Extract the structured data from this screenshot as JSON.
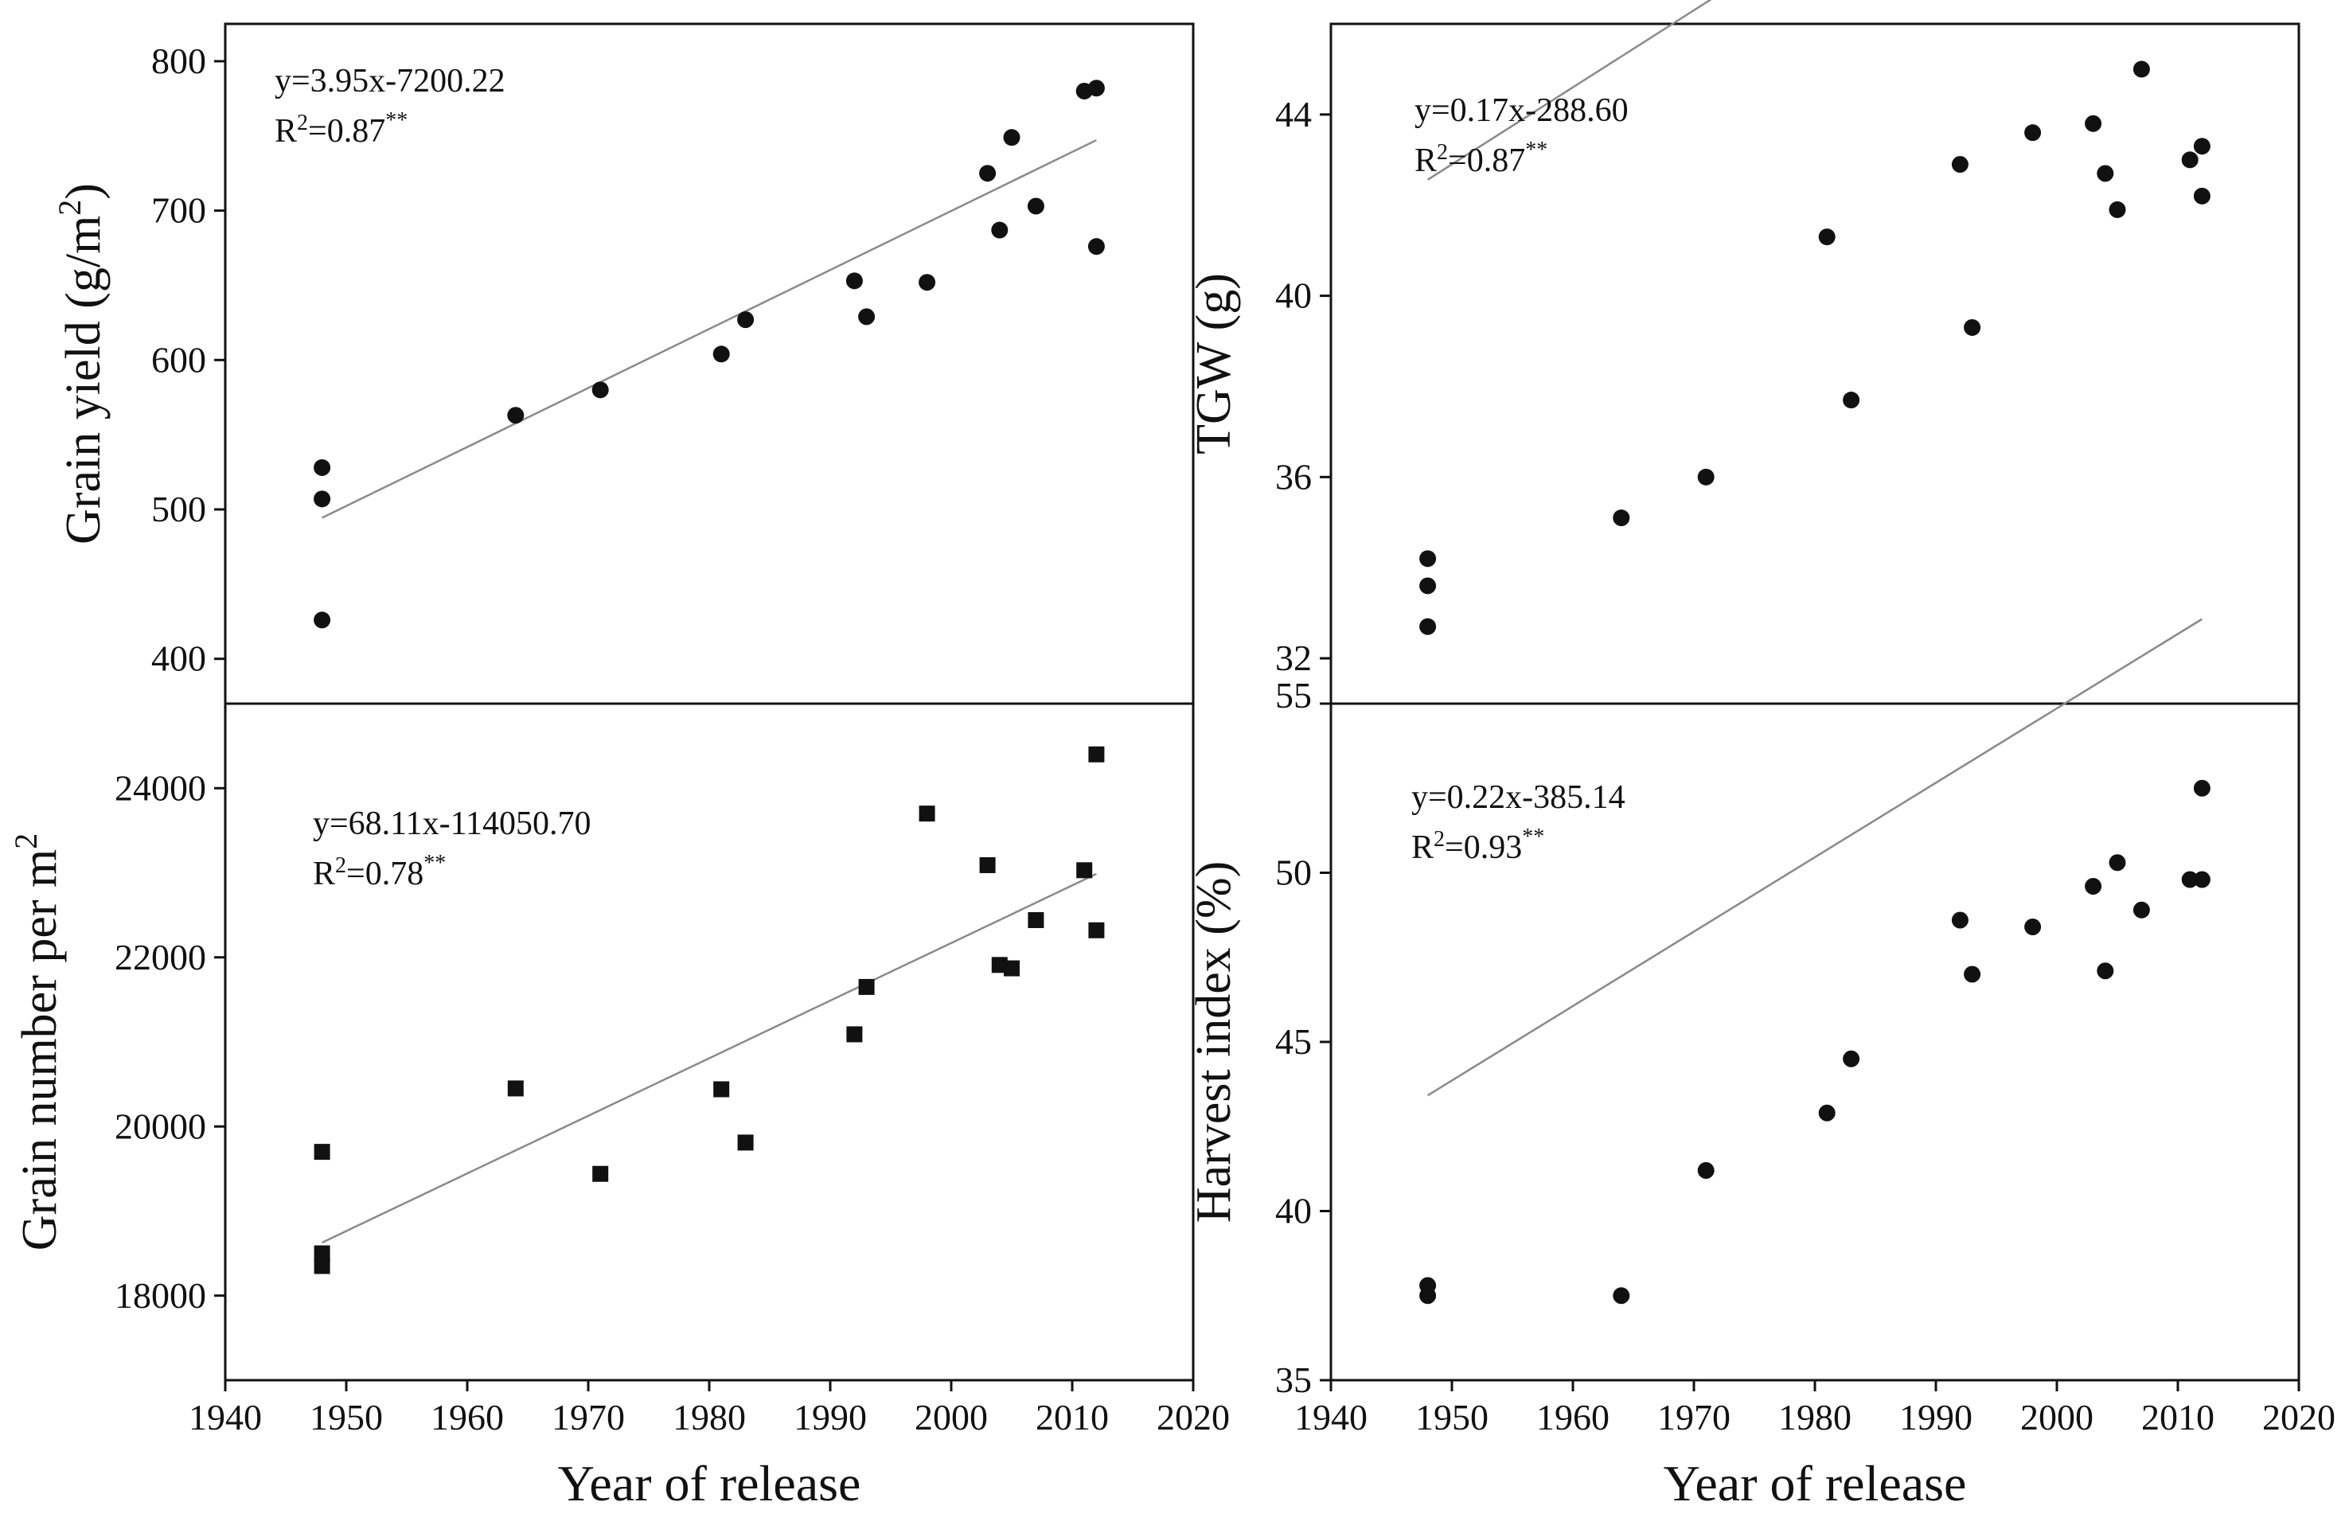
{
  "figure": {
    "xlabel": "Year of release",
    "xlim": [
      1940,
      2020
    ],
    "xticks": [
      1940,
      1950,
      1960,
      1970,
      1980,
      1990,
      2000,
      2010,
      2020
    ],
    "colors": {
      "marker": "#111111",
      "axis": "#111111",
      "fit_line": "#8a8a8a"
    }
  },
  "chart_data": [
    {
      "id": "grain-yield",
      "type": "scatter",
      "marker": "circle",
      "ylabel_main": "Grain yield (g/m",
      "ylabel_sup": "2",
      "ylabel_tail": ")",
      "ylim": [
        370,
        825
      ],
      "yticks": [
        400,
        500,
        600,
        700,
        800
      ],
      "equation": "y=3.95x-7200.22",
      "r2_prefix": "R",
      "r2_sup": "2",
      "r2_value": "=0.87",
      "r2_sig": "**",
      "fit": {
        "slope": 3.95,
        "intercept": -7200.22,
        "x_range": [
          1948,
          2012
        ]
      },
      "points": [
        [
          1948,
          528
        ],
        [
          1948,
          507
        ],
        [
          1948,
          426
        ],
        [
          1964,
          563
        ],
        [
          1971,
          580
        ],
        [
          1981,
          604
        ],
        [
          1983,
          627
        ],
        [
          1992,
          653
        ],
        [
          1993,
          629
        ],
        [
          1998,
          652
        ],
        [
          2003,
          725
        ],
        [
          2004,
          687
        ],
        [
          2005,
          749
        ],
        [
          2007,
          703
        ],
        [
          2011,
          780
        ],
        [
          2012,
          782
        ],
        [
          2012,
          676
        ]
      ]
    },
    {
      "id": "tgw",
      "type": "scatter",
      "marker": "circle",
      "ylabel_main": "TGW (g)",
      "ylabel_sup": "",
      "ylabel_tail": "",
      "ylim": [
        31,
        46
      ],
      "yticks": [
        32,
        36,
        40,
        44
      ],
      "equation": "y=0.17x-288.60",
      "r2_prefix": "R",
      "r2_sup": "2",
      "r2_value": "=0.87",
      "r2_sig": "**",
      "fit": {
        "slope": 0.17,
        "intercept": -288.6,
        "x_range": [
          1948,
          2012
        ]
      },
      "points": [
        [
          1948,
          34.2
        ],
        [
          1948,
          33.6
        ],
        [
          1948,
          32.7
        ],
        [
          1964,
          35.1
        ],
        [
          1971,
          36.0
        ],
        [
          1981,
          41.3
        ],
        [
          1983,
          37.7
        ],
        [
          1992,
          42.9
        ],
        [
          1993,
          39.3
        ],
        [
          1998,
          43.6
        ],
        [
          2003,
          43.8
        ],
        [
          2004,
          42.7
        ],
        [
          2005,
          41.9
        ],
        [
          2007,
          45.0
        ],
        [
          2011,
          43.0
        ],
        [
          2012,
          43.3
        ],
        [
          2012,
          42.2
        ]
      ]
    },
    {
      "id": "grain-number",
      "type": "scatter",
      "marker": "square",
      "ylabel_main": "Grain number per m",
      "ylabel_sup": "2",
      "ylabel_tail": "",
      "ylim": [
        17000,
        25000
      ],
      "yticks": [
        18000,
        20000,
        22000,
        24000
      ],
      "equation": "y=68.11x-114050.70",
      "r2_prefix": "R",
      "r2_sup": "2",
      "r2_value": "=0.78",
      "r2_sig": "**",
      "fit": {
        "slope": 68.11,
        "intercept": -114050.7,
        "x_range": [
          1948,
          2012
        ]
      },
      "points": [
        [
          1948,
          19700
        ],
        [
          1948,
          18500
        ],
        [
          1948,
          18350
        ],
        [
          1964,
          20450
        ],
        [
          1971,
          19440
        ],
        [
          1981,
          20440
        ],
        [
          1983,
          19810
        ],
        [
          1992,
          21090
        ],
        [
          1993,
          21650
        ],
        [
          1998,
          23700
        ],
        [
          2003,
          23090
        ],
        [
          2004,
          21910
        ],
        [
          2005,
          21870
        ],
        [
          2007,
          22440
        ],
        [
          2011,
          23030
        ],
        [
          2012,
          24400
        ],
        [
          2012,
          22320
        ]
      ]
    },
    {
      "id": "harvest-index",
      "type": "scatter",
      "marker": "circle",
      "ylabel_main": "Harvest index (%)",
      "ylabel_sup": "",
      "ylabel_tail": "",
      "ylim": [
        35,
        55
      ],
      "yticks": [
        35,
        40,
        45,
        50,
        55
      ],
      "equation": "y=0.22x-385.14",
      "r2_prefix": "R",
      "r2_sup": "2",
      "r2_value": "=0.93",
      "r2_sig": "**",
      "fit": {
        "slope": 0.22,
        "intercept": -385.14,
        "x_range": [
          1948,
          2012
        ]
      },
      "points": [
        [
          1948,
          37.8
        ],
        [
          1948,
          37.5
        ],
        [
          1964,
          37.5
        ],
        [
          1971,
          41.2
        ],
        [
          1981,
          42.9
        ],
        [
          1983,
          44.5
        ],
        [
          1992,
          48.6
        ],
        [
          1993,
          47.0
        ],
        [
          1998,
          48.4
        ],
        [
          2003,
          49.6
        ],
        [
          2004,
          47.1
        ],
        [
          2005,
          50.3
        ],
        [
          2007,
          48.9
        ],
        [
          2011,
          49.8
        ],
        [
          2012,
          49.8
        ],
        [
          2012,
          52.5
        ]
      ]
    }
  ]
}
